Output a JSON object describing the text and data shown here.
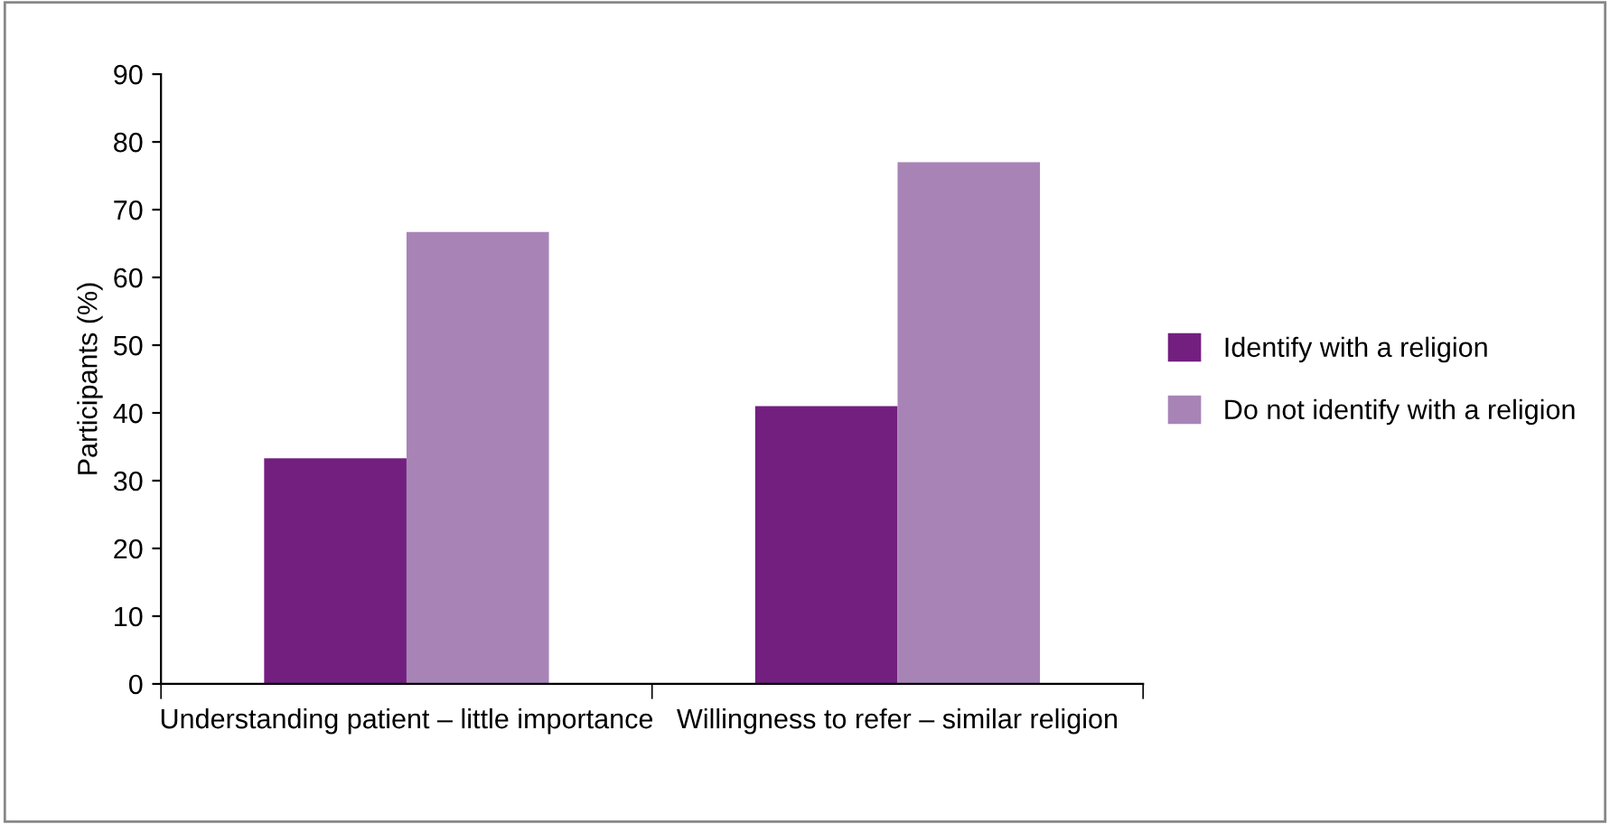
{
  "chart_data": {
    "type": "bar",
    "ylabel": "Participants (%)",
    "categories": [
      "Understanding patient – little importance",
      "Willingness to refer – similar religion"
    ],
    "series": [
      {
        "name": "Identify with a religion",
        "color": "#731f80",
        "values": [
          33.3,
          41
        ]
      },
      {
        "name": "Do not identify with a religion",
        "color": "#a884b6",
        "values": [
          66.7,
          77
        ]
      }
    ],
    "ylim": [
      0,
      90
    ],
    "yticks": [
      0,
      10,
      20,
      30,
      40,
      50,
      60,
      70,
      80,
      90
    ],
    "grid": false,
    "legend": "right"
  }
}
